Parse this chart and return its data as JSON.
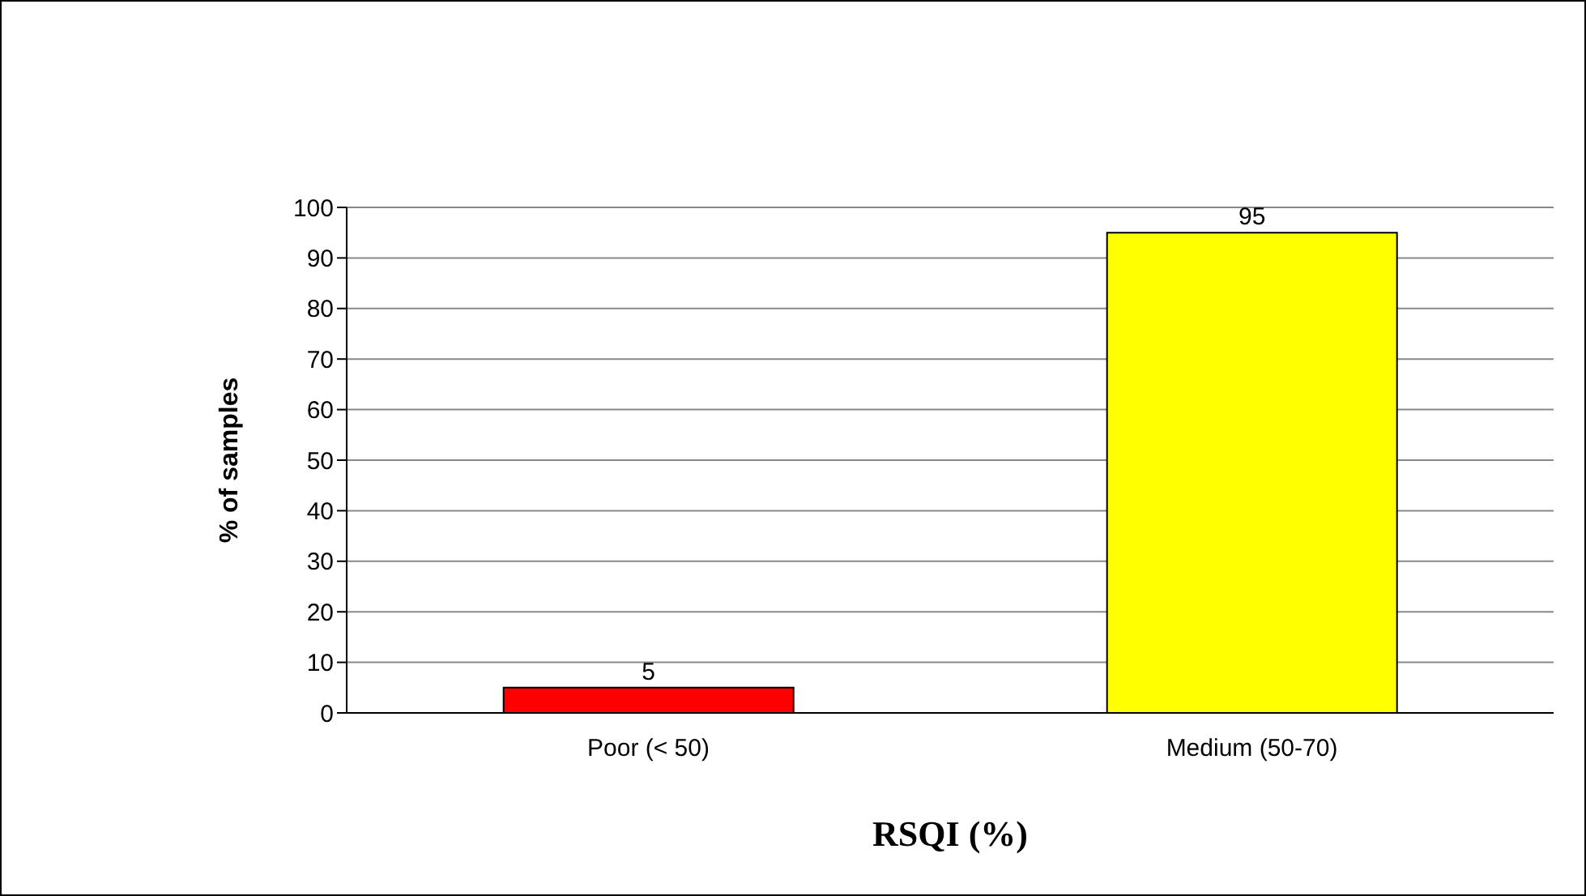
{
  "chart_data": {
    "type": "bar",
    "xlabel": "RSQI (%)",
    "ylabel": "% of samples",
    "categories": [
      "Poor (< 50)",
      "Medium (50-70)"
    ],
    "values": [
      5,
      95
    ],
    "colors": [
      "#ff0000",
      "#ffff00"
    ],
    "ylim": [
      0,
      100
    ],
    "yticks": [
      0,
      10,
      20,
      30,
      40,
      50,
      60,
      70,
      80,
      90,
      100
    ],
    "grid": "y",
    "data_labels": true
  }
}
